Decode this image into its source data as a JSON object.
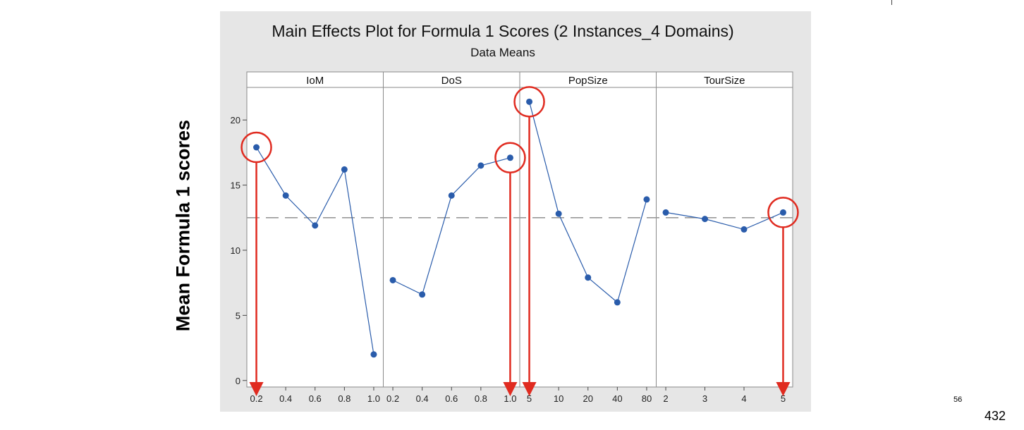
{
  "slide": {
    "ylabel": "Mean Formula 1 scores",
    "page_small": "56",
    "page_main": "432"
  },
  "colors": {
    "figure_bg": "#e6e6e6",
    "panel_bg": "#ffffff",
    "series": "#2a5cab",
    "highlight": "#e02b20",
    "reference": "#999999"
  },
  "chart_data": {
    "type": "line",
    "title": "Main Effects Plot for Formula 1 Scores (2 Instances_4 Domains)",
    "subtitle": "Data Means",
    "ylim": [
      -0.5,
      22.5
    ],
    "yticks": [
      0,
      5,
      10,
      15,
      20
    ],
    "reference_line": 12.5,
    "grid": false,
    "panels": [
      {
        "name": "IoM",
        "categories": [
          "0.2",
          "0.4",
          "0.6",
          "0.8",
          "1.0"
        ],
        "values": [
          17.9,
          14.2,
          11.9,
          16.2,
          2.0
        ],
        "highlight_index": 0
      },
      {
        "name": "DoS",
        "categories": [
          "0.2",
          "0.4",
          "0.6",
          "0.8",
          "1.0"
        ],
        "values": [
          7.7,
          6.6,
          14.2,
          16.5,
          17.1
        ],
        "highlight_index": 4
      },
      {
        "name": "PopSize",
        "categories": [
          "5",
          "10",
          "20",
          "40",
          "80"
        ],
        "values": [
          21.4,
          12.8,
          7.9,
          6.0,
          13.9
        ],
        "highlight_index": 0
      },
      {
        "name": "TourSize",
        "categories": [
          "2",
          "3",
          "4",
          "5"
        ],
        "values": [
          12.9,
          12.4,
          11.6,
          12.9
        ],
        "highlight_index": 3
      }
    ]
  }
}
